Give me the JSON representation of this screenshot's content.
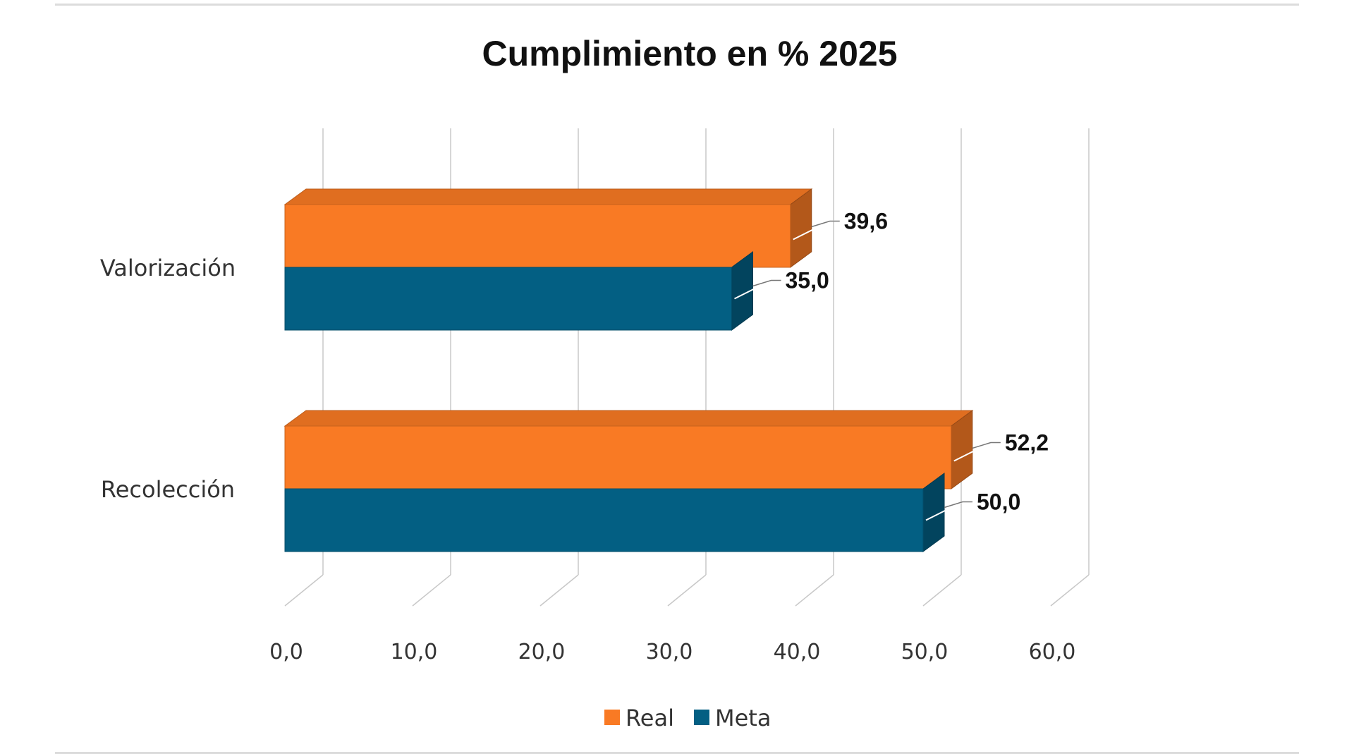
{
  "chart_data": {
    "type": "bar",
    "orientation": "horizontal",
    "style": "3d",
    "title": "Cumplimiento en % 2025",
    "categories": [
      "Valorización",
      "Recolección"
    ],
    "series": [
      {
        "name": "Real",
        "color": "#F97A24",
        "values": [
          39.6,
          52.2
        ],
        "labels": [
          "39,6",
          "52,2"
        ]
      },
      {
        "name": "Meta",
        "color": "#035F83",
        "values": [
          35.0,
          50.0
        ],
        "labels": [
          "35,0",
          "50,0"
        ]
      }
    ],
    "xlim": [
      0,
      60
    ],
    "xticks": [
      0,
      10,
      20,
      30,
      40,
      50,
      60
    ],
    "xtick_labels": [
      "0,0",
      "10,0",
      "20,0",
      "30,0",
      "40,0",
      "50,0",
      "60,0"
    ],
    "grid": true,
    "legend": "bottom"
  }
}
